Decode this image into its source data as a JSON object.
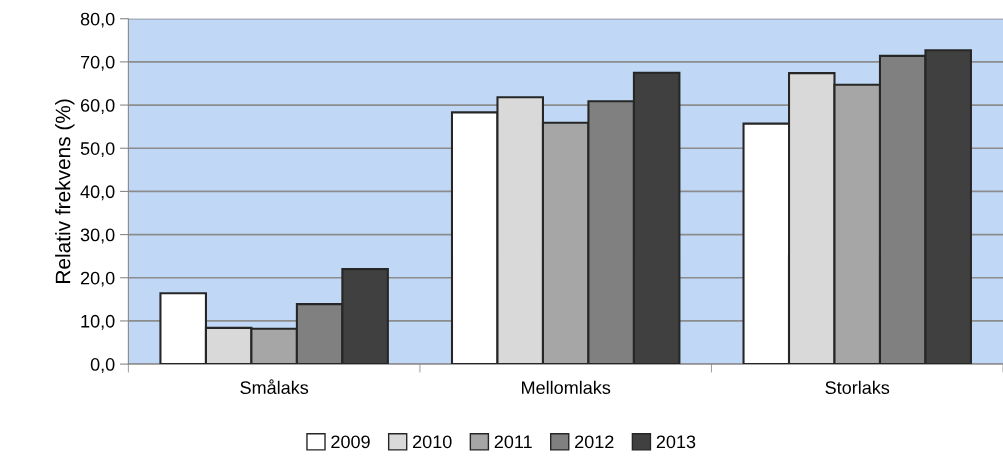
{
  "chart_data": {
    "type": "bar",
    "ylabel": "Relativ frekvens (%)",
    "categories": [
      "Smålaks",
      "Mellomlaks",
      "Storlaks"
    ],
    "series": [
      {
        "name": "2009",
        "color": "#ffffff",
        "values": [
          16.4,
          58.3,
          55.7
        ]
      },
      {
        "name": "2010",
        "color": "#d9d9d9",
        "values": [
          8.4,
          61.8,
          67.4
        ]
      },
      {
        "name": "2011",
        "color": "#a6a6a6",
        "values": [
          8.2,
          55.9,
          64.7
        ]
      },
      {
        "name": "2012",
        "color": "#808080",
        "values": [
          13.9,
          60.9,
          71.4
        ]
      },
      {
        "name": "2013",
        "color": "#404040",
        "values": [
          22.0,
          67.5,
          72.7
        ]
      }
    ],
    "ylim": [
      0,
      80
    ],
    "yticks": [
      {
        "value": 0,
        "label": "0,0"
      },
      {
        "value": 10,
        "label": "10,0"
      },
      {
        "value": 20,
        "label": "20,0"
      },
      {
        "value": 30,
        "label": "30,0"
      },
      {
        "value": 40,
        "label": "40,0"
      },
      {
        "value": 50,
        "label": "50,0"
      },
      {
        "value": 60,
        "label": "60,0"
      },
      {
        "value": 70,
        "label": "70,0"
      },
      {
        "value": 80,
        "label": "80,0"
      }
    ],
    "grid": "y",
    "legend": "bottom"
  }
}
